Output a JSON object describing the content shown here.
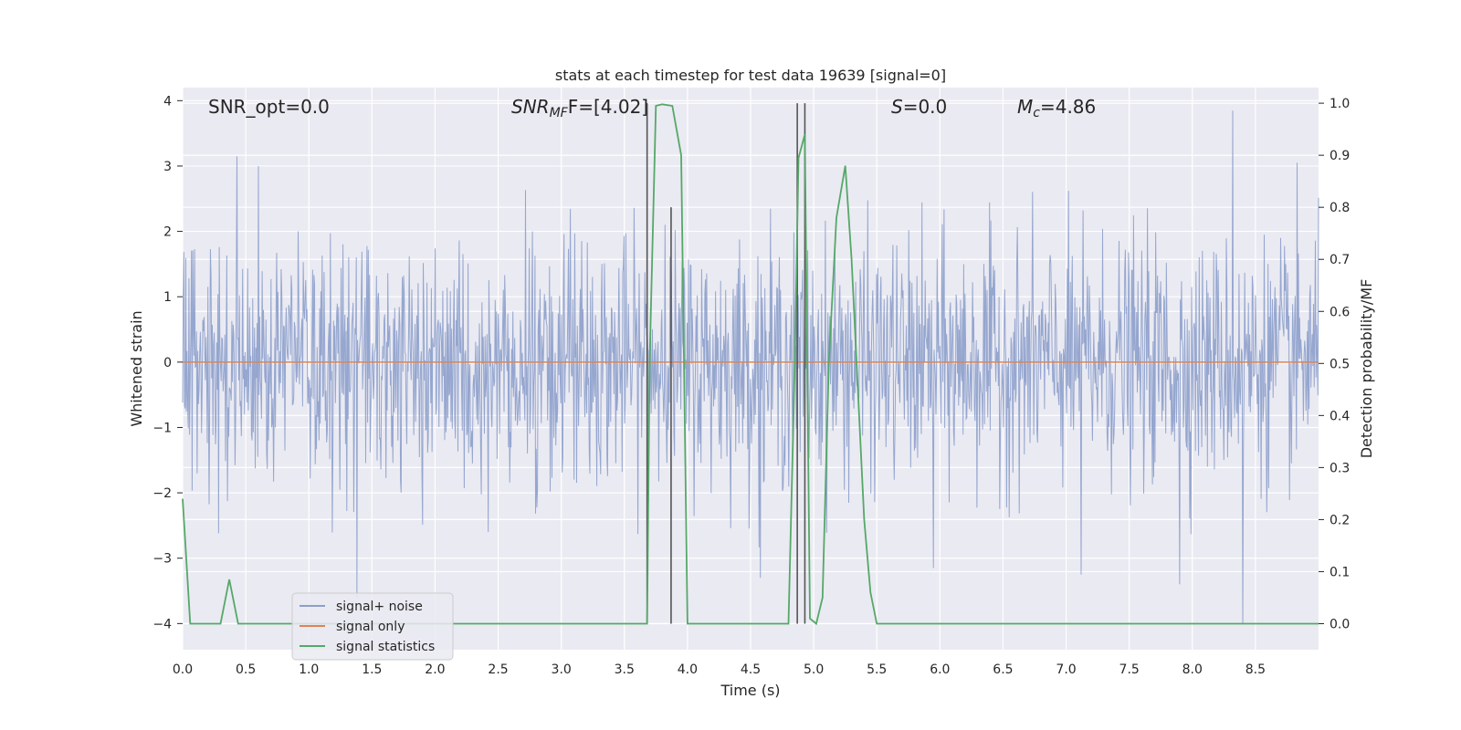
{
  "chart_data": {
    "type": "line",
    "title": "stats at each timestep for test data 19639 [signal=0]",
    "xlabel": "Time (s)",
    "ylabel_left": "Whitened strain",
    "ylabel_right": "Detection probability/MF",
    "xlim": [
      0.0,
      9.0
    ],
    "ylim_left": [
      -4.4,
      4.2
    ],
    "ylim_right": [
      -0.05,
      1.03
    ],
    "x_ticks": [
      0.0,
      0.5,
      1.0,
      1.5,
      2.0,
      2.5,
      3.0,
      3.5,
      4.0,
      4.5,
      5.0,
      5.5,
      6.0,
      6.5,
      7.0,
      7.5,
      8.0,
      8.5
    ],
    "x_tick_labels": [
      "0.0",
      "0.5",
      "1.0",
      "1.5",
      "2.0",
      "2.5",
      "3.0",
      "3.5",
      "4.0",
      "4.5",
      "5.0",
      "5.5",
      "6.0",
      "6.5",
      "7.0",
      "7.5",
      "8.0",
      "8.5"
    ],
    "y_left_ticks": [
      4,
      3,
      2,
      1,
      0,
      -1,
      -2,
      -3,
      -4
    ],
    "y_left_tick_labels": [
      "4",
      "3",
      "2",
      "1",
      "0",
      "−1",
      "−2",
      "−3",
      "−4"
    ],
    "y_right_ticks": [
      1.0,
      0.9,
      0.8,
      0.7,
      0.6,
      0.5,
      0.4,
      0.3,
      0.2,
      0.1,
      0.0
    ],
    "y_right_tick_labels": [
      "1.0",
      "0.9",
      "0.8",
      "0.7",
      "0.6",
      "0.5",
      "0.4",
      "0.3",
      "0.2",
      "0.1",
      "0.0"
    ],
    "grid": true,
    "legend_position": "lower-left",
    "series": [
      {
        "name": "signal+ noise",
        "axis": "left",
        "color": "#8c9fcb",
        "style": "dense noise, approx. std 0.9, range about -4 to 3.9",
        "notable_peaks": [
          {
            "x": 0.43,
            "y": 3.15
          },
          {
            "x": 0.6,
            "y": 3.0
          },
          {
            "x": 1.38,
            "y": -3.6
          },
          {
            "x": 3.82,
            "y": 2.1
          },
          {
            "x": 4.58,
            "y": -3.3
          },
          {
            "x": 5.95,
            "y": -3.15
          },
          {
            "x": 7.12,
            "y": -3.25
          },
          {
            "x": 7.9,
            "y": -3.4
          },
          {
            "x": 8.32,
            "y": 3.85
          },
          {
            "x": 8.4,
            "y": -4.0
          },
          {
            "x": 8.83,
            "y": 3.05
          }
        ]
      },
      {
        "name": "signal only",
        "axis": "left",
        "color": "#dd8452",
        "x": [
          0.0,
          9.0
        ],
        "y": [
          0.0,
          0.0
        ]
      },
      {
        "name": "signal statistics",
        "axis": "right",
        "color": "#55a868",
        "x": [
          0.0,
          0.06,
          0.12,
          0.2,
          0.3,
          0.37,
          0.44,
          0.5,
          0.7,
          1.0,
          1.5,
          2.0,
          2.5,
          3.0,
          3.5,
          3.68,
          3.7,
          3.75,
          3.8,
          3.88,
          3.95,
          4.0,
          4.1,
          4.5,
          4.8,
          4.85,
          4.88,
          4.93,
          4.97,
          5.02,
          5.07,
          5.12,
          5.18,
          5.25,
          5.3,
          5.4,
          5.45,
          5.5,
          5.6,
          6.0,
          7.0,
          8.0,
          9.0
        ],
        "y": [
          0.24,
          0.0,
          0.0,
          0.0,
          0.0,
          0.085,
          0.0,
          0.0,
          0.0,
          0.0,
          0.0,
          0.0,
          0.0,
          0.0,
          0.0,
          0.0,
          0.5,
          0.995,
          0.998,
          0.995,
          0.9,
          0.0,
          0.0,
          0.0,
          0.0,
          0.5,
          0.895,
          0.94,
          0.01,
          0.0,
          0.05,
          0.5,
          0.78,
          0.88,
          0.7,
          0.2,
          0.06,
          0.0,
          0.0,
          0.0,
          0.0,
          0.0,
          0.0
        ]
      }
    ],
    "markers": [
      {
        "x": 3.68,
        "top": 1.0,
        "bottom": 0.0,
        "color": "#555555"
      },
      {
        "x": 3.87,
        "top": 0.8,
        "bottom": 0.0,
        "color": "#555555"
      },
      {
        "x": 4.87,
        "top": 1.0,
        "bottom": 0.0,
        "color": "#555555"
      },
      {
        "x": 4.93,
        "top": 1.0,
        "bottom": 0.0,
        "color": "#555555"
      }
    ],
    "annotations": [
      {
        "key": "snr_opt",
        "text": "SNR_opt=0.0"
      },
      {
        "key": "snr_mf",
        "base": "SNR",
        "sub": "MF",
        "suffix": "F=[4.02]"
      },
      {
        "key": "s",
        "base": "S",
        "suffix": "=0.0"
      },
      {
        "key": "mc",
        "base": "M",
        "sub": "c",
        "suffix": "=4.86"
      }
    ],
    "legend": [
      "signal+ noise",
      "signal only",
      "signal statistics"
    ]
  }
}
